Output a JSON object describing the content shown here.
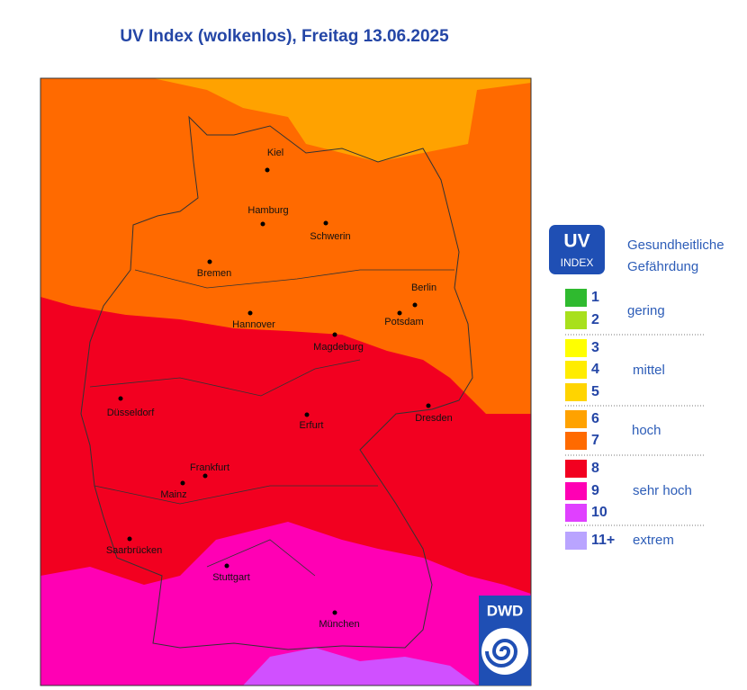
{
  "title": "UV Index (wolkenlos), Freitag 13.06.2025",
  "cities": [
    "Kiel",
    "Hamburg",
    "Schwerin",
    "Bremen",
    "Berlin",
    "Potsdam",
    "Hannover",
    "Magdeburg",
    "Düsseldorf",
    "Erfurt",
    "Dresden",
    "Frankfurt",
    "Mainz",
    "Saarbrücken",
    "Stuttgart",
    "München"
  ],
  "legend": {
    "badge_title": "UV",
    "badge_subtitle": "INDEX",
    "heading": [
      "Gesundheitliche",
      "Gefährdung"
    ],
    "levels": [
      {
        "label": "1",
        "color": "#2fba2f"
      },
      {
        "label": "2",
        "color": "#a8e01c"
      },
      {
        "label": "3",
        "color": "#ffff00"
      },
      {
        "label": "4",
        "color": "#ffec00"
      },
      {
        "label": "5",
        "color": "#ffd400"
      },
      {
        "label": "6",
        "color": "#ffa200"
      },
      {
        "label": "7",
        "color": "#ff6a00"
      },
      {
        "label": "8",
        "color": "#f20020"
      },
      {
        "label": "9",
        "color": "#ff00b4"
      },
      {
        "label": "10",
        "color": "#e040ff"
      },
      {
        "label": "11+",
        "color": "#b9a4ff"
      }
    ],
    "groups": [
      "gering",
      "mittel",
      "hoch",
      "sehr hoch",
      "extrem"
    ]
  },
  "logo": "DWD"
}
